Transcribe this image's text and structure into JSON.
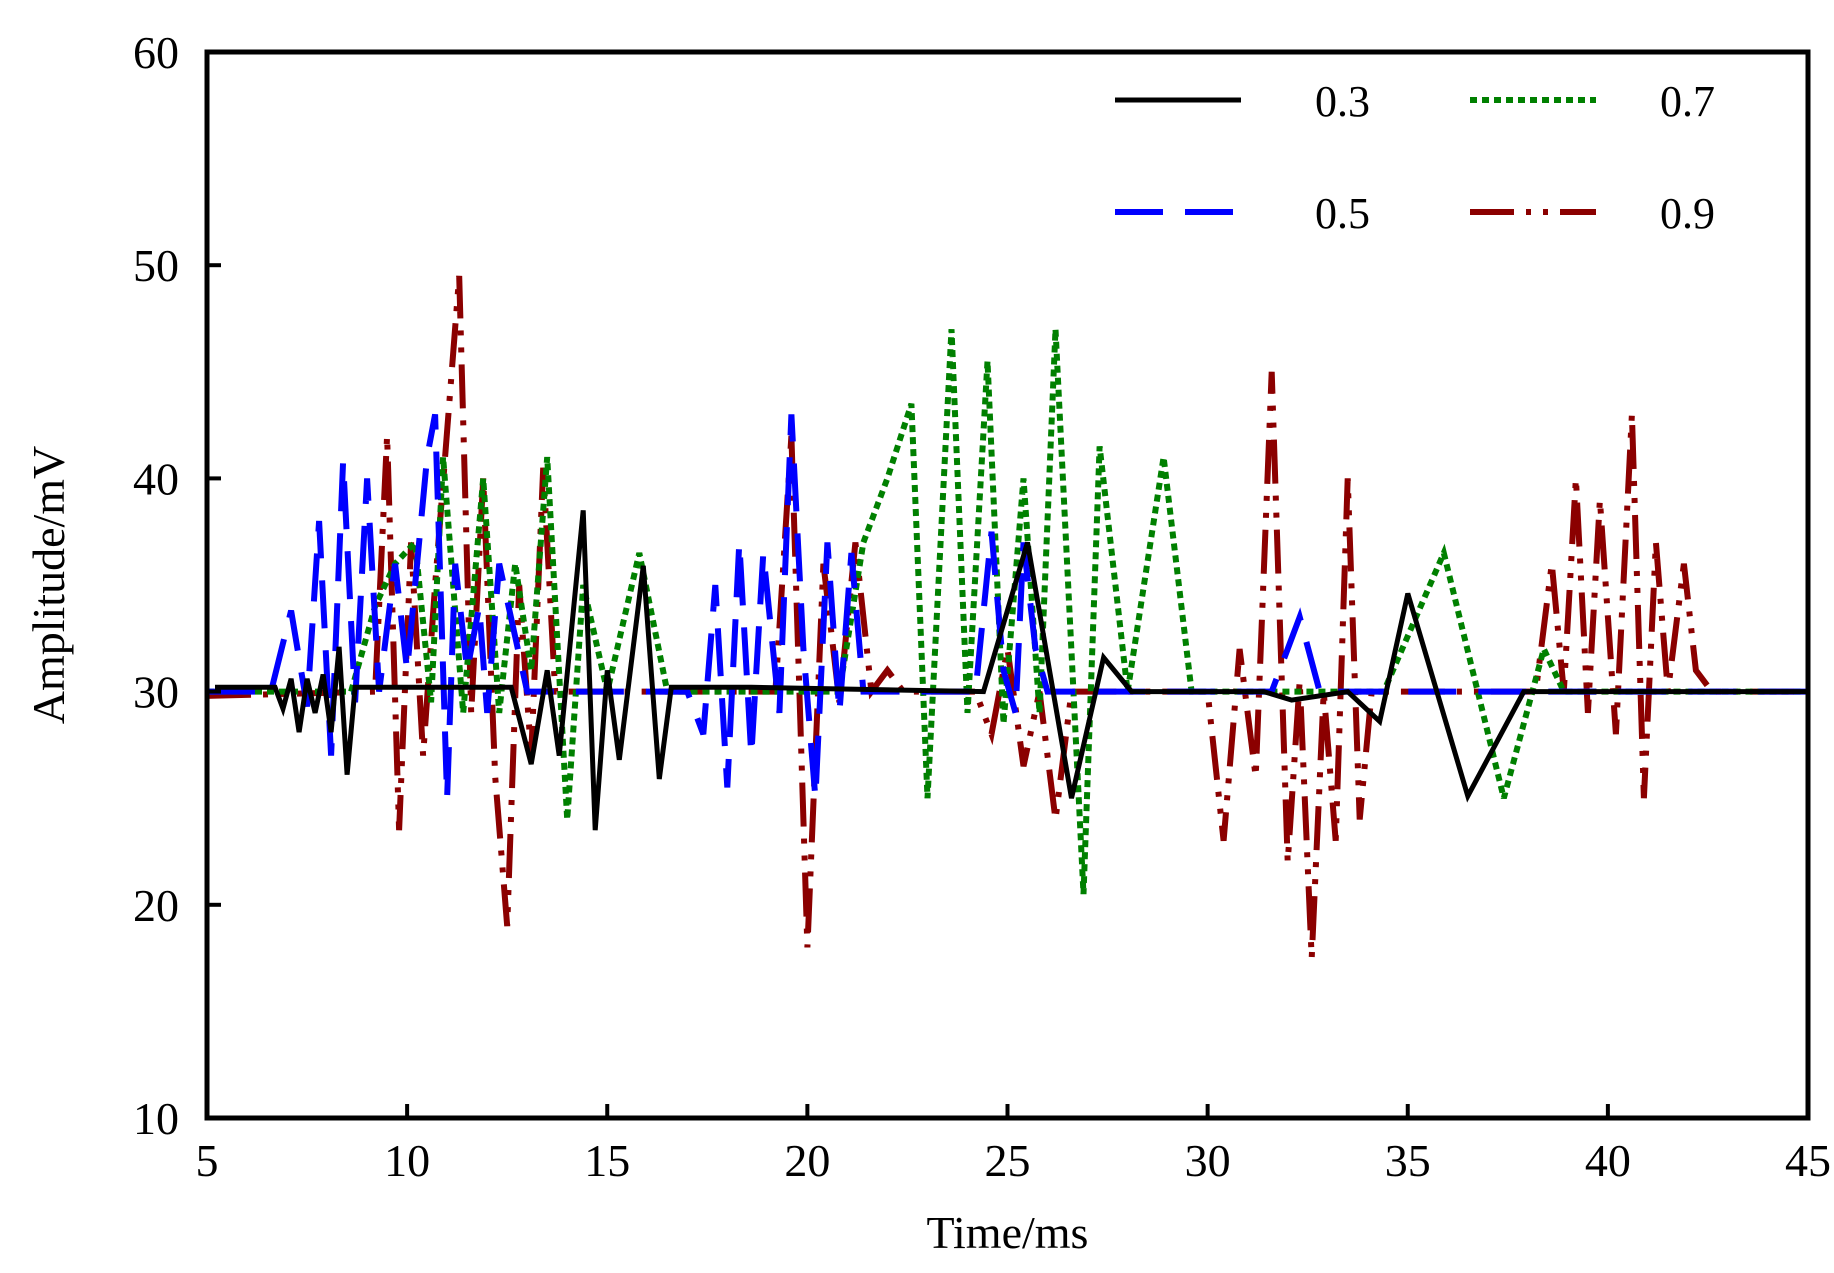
{
  "chart_data": {
    "type": "line",
    "title": "",
    "xlabel": "Time/ms",
    "ylabel": "Amplitude/mV",
    "xlim": [
      5,
      45
    ],
    "ylim": [
      10,
      60
    ],
    "grid": false,
    "legend_position": "top-right",
    "x_tick_labels": [
      "5",
      "10",
      "15",
      "20",
      "25",
      "30",
      "35",
      "40",
      "45"
    ],
    "y_tick_labels": [
      "10",
      "20",
      "30",
      "40",
      "50",
      "60"
    ],
    "series": [
      {
        "name": "0.3",
        "color": "#000000",
        "style": "solid",
        "points": [
          [
            5.2,
            30.2
          ],
          [
            6.7,
            30.2
          ],
          [
            6.9,
            29.2
          ],
          [
            7.1,
            30.6
          ],
          [
            7.3,
            28.1
          ],
          [
            7.5,
            30.6
          ],
          [
            7.7,
            29.0
          ],
          [
            7.9,
            30.8
          ],
          [
            8.1,
            28.1
          ],
          [
            8.3,
            32.1
          ],
          [
            8.5,
            26.1
          ],
          [
            8.7,
            30.2
          ],
          [
            12.6,
            30.2
          ],
          [
            13.1,
            26.6
          ],
          [
            13.5,
            31.0
          ],
          [
            13.8,
            27.0
          ],
          [
            14.4,
            38.5
          ],
          [
            14.7,
            23.5
          ],
          [
            15.0,
            31.0
          ],
          [
            15.3,
            26.8
          ],
          [
            15.9,
            35.9
          ],
          [
            16.3,
            25.9
          ],
          [
            16.6,
            30.2
          ],
          [
            18.6,
            30.2
          ],
          [
            24.4,
            30.0
          ],
          [
            25.5,
            37.0
          ],
          [
            26.6,
            25.0
          ],
          [
            27.4,
            31.6
          ],
          [
            28.1,
            30.0
          ],
          [
            31.4,
            30.0
          ],
          [
            32.1,
            29.6
          ],
          [
            33.5,
            30.0
          ],
          [
            34.3,
            28.6
          ],
          [
            35.0,
            34.6
          ],
          [
            36.5,
            25.1
          ],
          [
            37.9,
            30.0
          ],
          [
            45.0,
            30.0
          ]
        ]
      },
      {
        "name": "0.5",
        "color": "#0000ff",
        "style": "dashed",
        "points": [
          [
            5.0,
            30.0
          ],
          [
            6.6,
            30.0
          ],
          [
            7.1,
            33.8
          ],
          [
            7.5,
            29.3
          ],
          [
            7.8,
            38.0
          ],
          [
            8.1,
            27.0
          ],
          [
            8.4,
            40.8
          ],
          [
            8.7,
            29.5
          ],
          [
            9.0,
            40.0
          ],
          [
            9.3,
            30.0
          ],
          [
            9.7,
            36.0
          ],
          [
            10.0,
            31.0
          ],
          [
            10.5,
            41.0
          ],
          [
            10.7,
            43.0
          ],
          [
            11.0,
            25.0
          ],
          [
            11.2,
            36.0
          ],
          [
            11.5,
            31.0
          ],
          [
            11.8,
            34.0
          ],
          [
            12.0,
            29.0
          ],
          [
            12.3,
            36.0
          ],
          [
            13.0,
            30.0
          ],
          [
            17.0,
            30.0
          ],
          [
            17.4,
            28.0
          ],
          [
            17.7,
            35.0
          ],
          [
            18.0,
            25.5
          ],
          [
            18.3,
            37.0
          ],
          [
            18.6,
            27.0
          ],
          [
            18.9,
            36.5
          ],
          [
            19.3,
            29.0
          ],
          [
            19.6,
            43.0
          ],
          [
            19.9,
            32.0
          ],
          [
            20.2,
            25.0
          ],
          [
            20.5,
            37.0
          ],
          [
            20.8,
            29.0
          ],
          [
            21.1,
            36.5
          ],
          [
            21.4,
            30.0
          ],
          [
            24.2,
            30.0
          ],
          [
            24.6,
            37.5
          ],
          [
            24.9,
            31.0
          ],
          [
            25.2,
            29.0
          ],
          [
            25.4,
            37.0
          ],
          [
            25.7,
            32.0
          ],
          [
            26.0,
            30.0
          ],
          [
            31.6,
            30.0
          ],
          [
            32.3,
            33.5
          ],
          [
            32.8,
            30.0
          ],
          [
            45.0,
            30.0
          ]
        ]
      },
      {
        "name": "0.7",
        "color": "#008000",
        "style": "dotted",
        "points": [
          [
            5.0,
            30.0
          ],
          [
            8.6,
            30.0
          ],
          [
            9.2,
            34.0
          ],
          [
            9.7,
            36.0
          ],
          [
            10.2,
            37.0
          ],
          [
            10.6,
            29.5
          ],
          [
            10.9,
            41.0
          ],
          [
            11.4,
            29.0
          ],
          [
            11.9,
            40.0
          ],
          [
            12.3,
            29.0
          ],
          [
            12.7,
            36.0
          ],
          [
            13.1,
            31.0
          ],
          [
            13.5,
            41.0
          ],
          [
            14.0,
            24.0
          ],
          [
            14.4,
            35.0
          ],
          [
            15.0,
            30.0
          ],
          [
            15.8,
            36.5
          ],
          [
            16.5,
            30.0
          ],
          [
            20.8,
            30.0
          ],
          [
            21.4,
            37.0
          ],
          [
            22.0,
            40.0
          ],
          [
            22.6,
            43.5
          ],
          [
            23.0,
            25.0
          ],
          [
            23.6,
            47.0
          ],
          [
            24.0,
            29.0
          ],
          [
            24.5,
            45.5
          ],
          [
            24.9,
            28.5
          ],
          [
            25.4,
            40.0
          ],
          [
            25.8,
            29.0
          ],
          [
            26.2,
            47.0
          ],
          [
            26.9,
            20.5
          ],
          [
            27.3,
            41.5
          ],
          [
            28.0,
            30.0
          ],
          [
            28.9,
            41.0
          ],
          [
            29.6,
            30.0
          ],
          [
            34.4,
            30.0
          ],
          [
            35.9,
            36.5
          ],
          [
            37.4,
            25.0
          ],
          [
            38.4,
            32.0
          ],
          [
            38.9,
            30.0
          ],
          [
            45.0,
            30.0
          ]
        ]
      },
      {
        "name": "0.9",
        "color": "#8b0000",
        "style": "dash-dot-dot",
        "points": [
          [
            5.0,
            29.8
          ],
          [
            9.2,
            30.0
          ],
          [
            9.5,
            42.0
          ],
          [
            9.8,
            23.5
          ],
          [
            10.1,
            37.0
          ],
          [
            10.4,
            27.0
          ],
          [
            10.7,
            35.0
          ],
          [
            11.3,
            49.5
          ],
          [
            11.6,
            29.0
          ],
          [
            11.9,
            40.0
          ],
          [
            12.2,
            26.0
          ],
          [
            12.5,
            19.0
          ],
          [
            12.8,
            35.0
          ],
          [
            13.1,
            27.0
          ],
          [
            13.4,
            40.5
          ],
          [
            13.7,
            30.0
          ],
          [
            17.6,
            30.0
          ],
          [
            18.4,
            30.0
          ],
          [
            19.2,
            30.0
          ],
          [
            19.6,
            42.0
          ],
          [
            20.0,
            18.0
          ],
          [
            20.4,
            36.0
          ],
          [
            20.8,
            29.5
          ],
          [
            21.2,
            37.0
          ],
          [
            21.6,
            30.0
          ],
          [
            22.0,
            31.0
          ],
          [
            22.4,
            30.0
          ],
          [
            24.2,
            30.0
          ],
          [
            24.6,
            28.0
          ],
          [
            25.0,
            32.0
          ],
          [
            25.4,
            26.5
          ],
          [
            25.8,
            30.0
          ],
          [
            26.2,
            24.0
          ],
          [
            26.6,
            30.0
          ],
          [
            30.0,
            30.0
          ],
          [
            30.4,
            23.0
          ],
          [
            30.8,
            32.0
          ],
          [
            31.2,
            26.0
          ],
          [
            31.6,
            45.0
          ],
          [
            32.0,
            22.0
          ],
          [
            32.3,
            30.5
          ],
          [
            32.6,
            17.5
          ],
          [
            32.9,
            30.0
          ],
          [
            33.2,
            23.0
          ],
          [
            33.5,
            40.0
          ],
          [
            33.8,
            24.0
          ],
          [
            34.1,
            30.0
          ],
          [
            37.8,
            30.0
          ],
          [
            38.2,
            30.0
          ],
          [
            38.6,
            36.0
          ],
          [
            38.9,
            30.0
          ],
          [
            39.2,
            40.0
          ],
          [
            39.5,
            29.0
          ],
          [
            39.8,
            39.0
          ],
          [
            40.2,
            28.0
          ],
          [
            40.6,
            43.0
          ],
          [
            40.9,
            25.0
          ],
          [
            41.2,
            37.0
          ],
          [
            41.5,
            30.0
          ],
          [
            41.9,
            36.0
          ],
          [
            42.2,
            31.0
          ],
          [
            42.6,
            30.0
          ],
          [
            45.0,
            30.0
          ]
        ]
      }
    ]
  }
}
